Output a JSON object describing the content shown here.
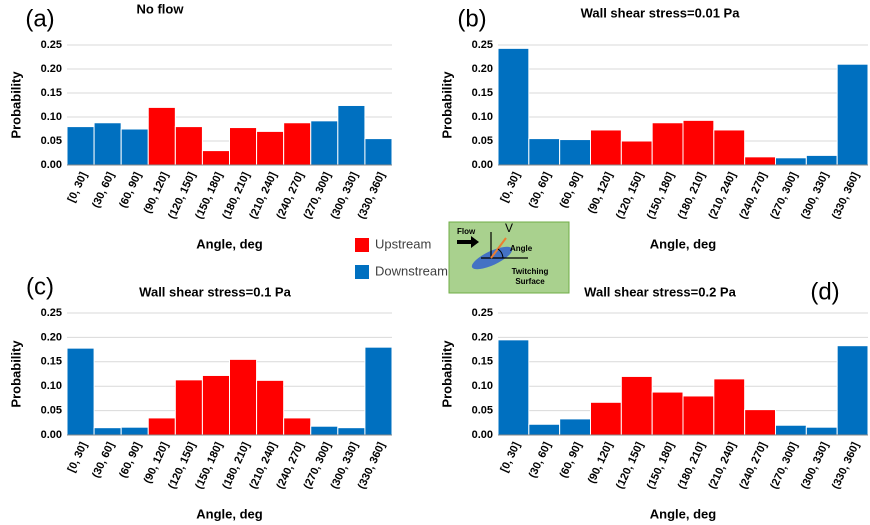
{
  "chart_data": [
    {
      "type": "bar",
      "panel": "(a)",
      "title": "No flow",
      "x_label": "Angle, deg",
      "y_label": "Probability",
      "categories": [
        "[0, 30]",
        "(30, 60]",
        "(60, 90]",
        "(90, 120]",
        "(120, 150]",
        "(150, 180]",
        "(180, 210]",
        "(210, 240]",
        "(240, 270]",
        "(270, 300]",
        "(300, 330]",
        "(330, 360]"
      ],
      "values": [
        0.08,
        0.088,
        0.075,
        0.12,
        0.08,
        0.03,
        0.078,
        0.07,
        0.088,
        0.092,
        0.124,
        0.055
      ],
      "colors": [
        "#0070c0",
        "#0070c0",
        "#0070c0",
        "#ff0000",
        "#ff0000",
        "#ff0000",
        "#ff0000",
        "#ff0000",
        "#ff0000",
        "#0070c0",
        "#0070c0",
        "#0070c0"
      ],
      "ylim": [
        0,
        0.25
      ],
      "yticks": [
        {
          "value": 0,
          "label": "0.00"
        },
        {
          "value": 0.05,
          "label": "0.05"
        },
        {
          "value": 0.1,
          "label": "0.10"
        },
        {
          "value": 0.15,
          "label": "0.15"
        },
        {
          "value": 0.2,
          "label": "0.20"
        },
        {
          "value": 0.25,
          "label": "0.25"
        }
      ],
      "grid": true
    },
    {
      "type": "bar",
      "panel": "(b)",
      "title": "Wall shear stress=0.01 Pa",
      "x_label": "Angle, deg",
      "y_label": "Probability",
      "categories": [
        "[0, 30]",
        "(30, 60]",
        "(60, 90]",
        "(90, 120]",
        "(120, 150]",
        "(150, 180]",
        "(180, 210]",
        "(210, 240]",
        "(240, 270]",
        "(270, 300]",
        "(300, 330]",
        "(330, 360]"
      ],
      "values": [
        0.243,
        0.055,
        0.053,
        0.073,
        0.05,
        0.088,
        0.093,
        0.073,
        0.017,
        0.015,
        0.02,
        0.21
      ],
      "colors": [
        "#0070c0",
        "#0070c0",
        "#0070c0",
        "#ff0000",
        "#ff0000",
        "#ff0000",
        "#ff0000",
        "#ff0000",
        "#ff0000",
        "#0070c0",
        "#0070c0",
        "#0070c0"
      ],
      "ylim": [
        0,
        0.25
      ],
      "yticks": [
        {
          "value": 0,
          "label": "0.00"
        },
        {
          "value": 0.05,
          "label": "0.05"
        },
        {
          "value": 0.1,
          "label": "0.10"
        },
        {
          "value": 0.15,
          "label": "0.15"
        },
        {
          "value": 0.2,
          "label": "0.20"
        },
        {
          "value": 0.25,
          "label": "0.25"
        }
      ],
      "grid": true
    },
    {
      "type": "bar",
      "panel": "(c)",
      "title": "Wall shear stress=0.1 Pa",
      "x_label": "Angle, deg",
      "y_label": "Probability",
      "categories": [
        "[0, 30]",
        "(30, 60]",
        "(60, 90]",
        "(90, 120]",
        "(120, 150]",
        "(150, 180]",
        "(180, 210]",
        "(210, 240]",
        "(240, 270]",
        "(270, 300]",
        "(300, 330]",
        "(330, 360]"
      ],
      "values": [
        0.178,
        0.015,
        0.016,
        0.035,
        0.113,
        0.122,
        0.155,
        0.112,
        0.035,
        0.018,
        0.015,
        0.18
      ],
      "colors": [
        "#0070c0",
        "#0070c0",
        "#0070c0",
        "#ff0000",
        "#ff0000",
        "#ff0000",
        "#ff0000",
        "#ff0000",
        "#ff0000",
        "#0070c0",
        "#0070c0",
        "#0070c0"
      ],
      "ylim": [
        0,
        0.25
      ],
      "yticks": [
        {
          "value": 0,
          "label": "0.00"
        },
        {
          "value": 0.05,
          "label": "0.05"
        },
        {
          "value": 0.1,
          "label": "0.10"
        },
        {
          "value": 0.15,
          "label": "0.15"
        },
        {
          "value": 0.2,
          "label": "0.20"
        },
        {
          "value": 0.25,
          "label": "0.25"
        }
      ],
      "grid": true
    },
    {
      "type": "bar",
      "panel": "(d)",
      "title": "Wall shear stress=0.2 Pa",
      "x_label": "Angle, deg",
      "y_label": "Probability",
      "categories": [
        "[0, 30]",
        "(30, 60]",
        "(60, 90]",
        "(90, 120]",
        "(120, 150]",
        "(150, 180]",
        "(180, 210]",
        "(210, 240]",
        "(240, 270]",
        "(270, 300]",
        "(300, 330]",
        "(330, 360]"
      ],
      "values": [
        0.195,
        0.022,
        0.033,
        0.067,
        0.12,
        0.088,
        0.08,
        0.115,
        0.052,
        0.02,
        0.016,
        0.183
      ],
      "colors": [
        "#0070c0",
        "#0070c0",
        "#0070c0",
        "#ff0000",
        "#ff0000",
        "#ff0000",
        "#ff0000",
        "#ff0000",
        "#ff0000",
        "#0070c0",
        "#0070c0",
        "#0070c0"
      ],
      "ylim": [
        0,
        0.25
      ],
      "yticks": [
        {
          "value": 0,
          "label": "0.00"
        },
        {
          "value": 0.05,
          "label": "0.05"
        },
        {
          "value": 0.1,
          "label": "0.10"
        },
        {
          "value": 0.15,
          "label": "0.15"
        },
        {
          "value": 0.2,
          "label": "0.20"
        },
        {
          "value": 0.25,
          "label": "0.25"
        }
      ],
      "grid": true
    }
  ],
  "legend": {
    "items": [
      {
        "name": "Upstream",
        "color": "#ff0000"
      },
      {
        "name": "Downstream",
        "color": "#0070c0"
      }
    ]
  },
  "inset": {
    "flow": "Flow",
    "velocity": "V",
    "angle": "Angle",
    "surface_line1": "Twitching",
    "surface_line2": "Surface"
  }
}
